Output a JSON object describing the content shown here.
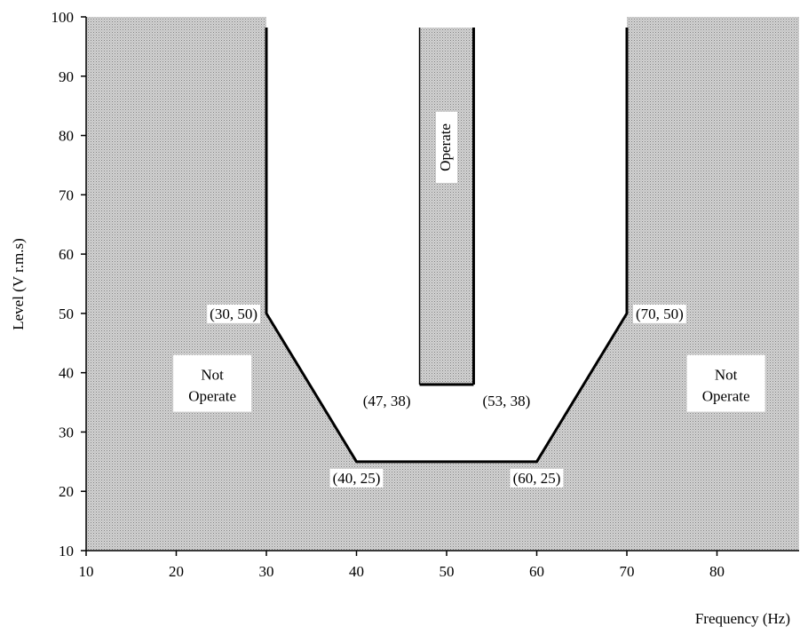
{
  "chart_data": {
    "type": "area",
    "xlabel": "Frequency (Hz)",
    "ylabel": "Level (V r.m.s)",
    "xlim": [
      10,
      90
    ],
    "ylim": [
      10,
      100
    ],
    "x_ticks": [
      10,
      20,
      30,
      40,
      50,
      60,
      70,
      80
    ],
    "y_ticks": [
      10,
      20,
      30,
      40,
      50,
      60,
      70,
      80,
      90,
      100
    ],
    "grid": false,
    "not_operate_boundary": [
      {
        "x": 30,
        "y": 100
      },
      {
        "x": 30,
        "y": 50
      },
      {
        "x": 40,
        "y": 25
      },
      {
        "x": 60,
        "y": 25
      },
      {
        "x": 70,
        "y": 50
      },
      {
        "x": 70,
        "y": 100
      }
    ],
    "operate_region": {
      "label": "Operate",
      "x": [
        47,
        53
      ],
      "y": [
        38,
        100
      ]
    },
    "regions": [
      {
        "label_lines": [
          "Not",
          "Operate"
        ],
        "x": 24,
        "y": 40
      },
      {
        "label_lines": [
          "Not",
          "Operate"
        ],
        "x": 81,
        "y": 40
      }
    ],
    "point_labels": [
      {
        "text": "(30, 50)",
        "x": 30,
        "y": 50,
        "anchor": "end"
      },
      {
        "text": "(70, 50)",
        "x": 70,
        "y": 50,
        "anchor": "start"
      },
      {
        "text": "(47, 38)",
        "x": 47,
        "y": 38,
        "anchor": "end"
      },
      {
        "text": "(53, 38)",
        "x": 53,
        "y": 38,
        "anchor": "start"
      },
      {
        "text": "(40, 25)",
        "x": 40,
        "y": 25,
        "anchor": "middle"
      },
      {
        "text": "(60, 25)",
        "x": 60,
        "y": 25,
        "anchor": "middle"
      }
    ],
    "colors": {
      "fill": "#c9c9c9",
      "fill_dots": "#8a8a8a",
      "line": "#000000",
      "label_bg": "#ffffff"
    }
  }
}
